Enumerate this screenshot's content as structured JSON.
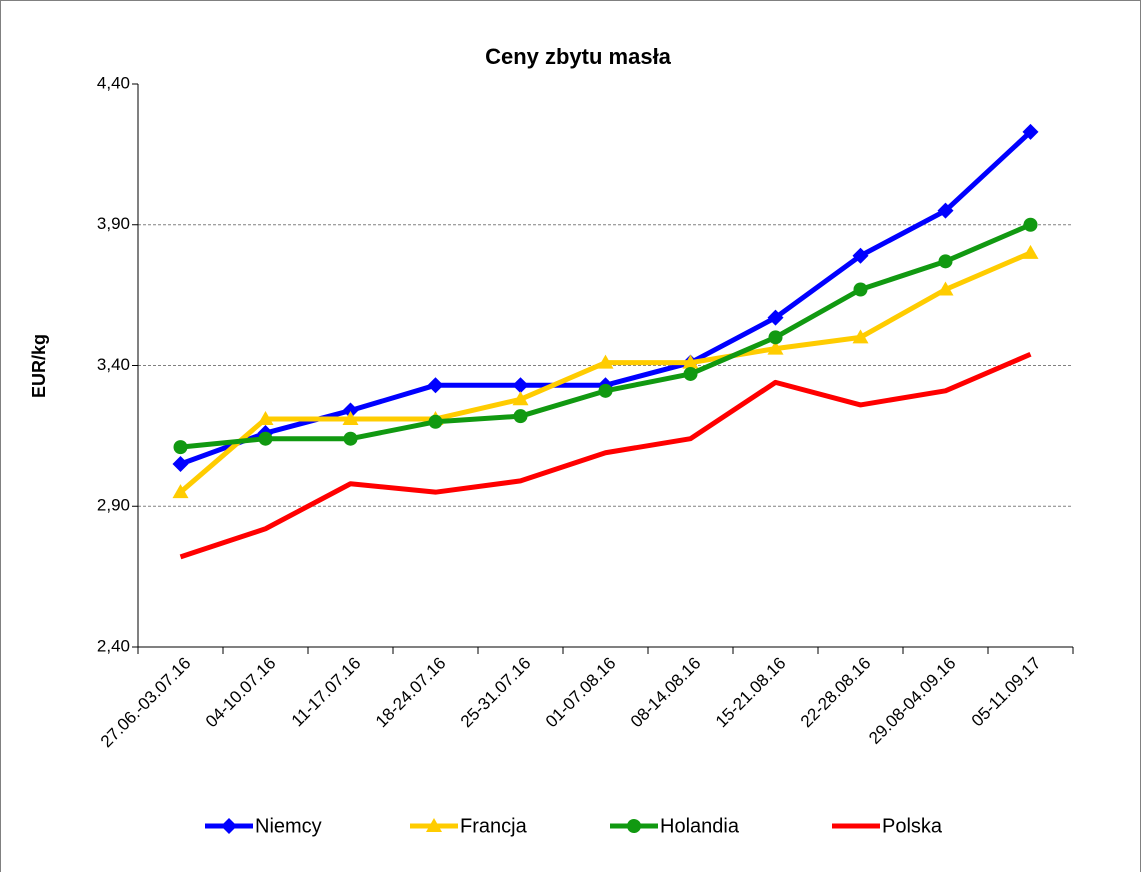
{
  "chart_data": {
    "type": "line",
    "title": "Ceny zbytu masła",
    "y_label": "EUR/kg",
    "categories": [
      "27.06.-03.07.16",
      "04-10.07.16",
      "11-17.07.16",
      "18-24.07.16",
      "25-31.07.16",
      "01-07.08.16",
      "08-14.08.16",
      "15-21.08.16",
      "22-28.08.16",
      "29.08-04.09.16",
      "05-11.09.17"
    ],
    "series": [
      {
        "name": "Niemcy",
        "color": "#0000ff",
        "marker": "diamond",
        "values": [
          3.05,
          3.16,
          3.24,
          3.33,
          3.33,
          3.33,
          3.41,
          3.57,
          3.79,
          3.95,
          4.23
        ]
      },
      {
        "name": "Francja",
        "color": "#ffcc00",
        "marker": "triangle",
        "values": [
          2.95,
          3.21,
          3.21,
          3.21,
          3.28,
          3.41,
          3.41,
          3.46,
          3.5,
          3.67,
          3.8
        ]
      },
      {
        "name": "Holandia",
        "color": "#119911",
        "marker": "circle",
        "values": [
          3.11,
          3.14,
          3.14,
          3.2,
          3.22,
          3.31,
          3.37,
          3.5,
          3.67,
          3.77,
          3.9
        ]
      },
      {
        "name": "Polska",
        "color": "#ff0000",
        "marker": "none",
        "values": [
          2.72,
          2.82,
          2.98,
          2.95,
          2.99,
          3.09,
          3.14,
          3.34,
          3.26,
          3.31,
          3.44
        ]
      }
    ],
    "ylim": [
      2.4,
      4.4
    ],
    "yticks": [
      {
        "value": 2.4,
        "label": "2,40"
      },
      {
        "value": 2.9,
        "label": "2,90"
      },
      {
        "value": 3.4,
        "label": "3,40"
      },
      {
        "value": 3.9,
        "label": "3,90"
      },
      {
        "value": 4.4,
        "label": "4,40"
      }
    ],
    "grid": true,
    "legend": "bottom"
  }
}
